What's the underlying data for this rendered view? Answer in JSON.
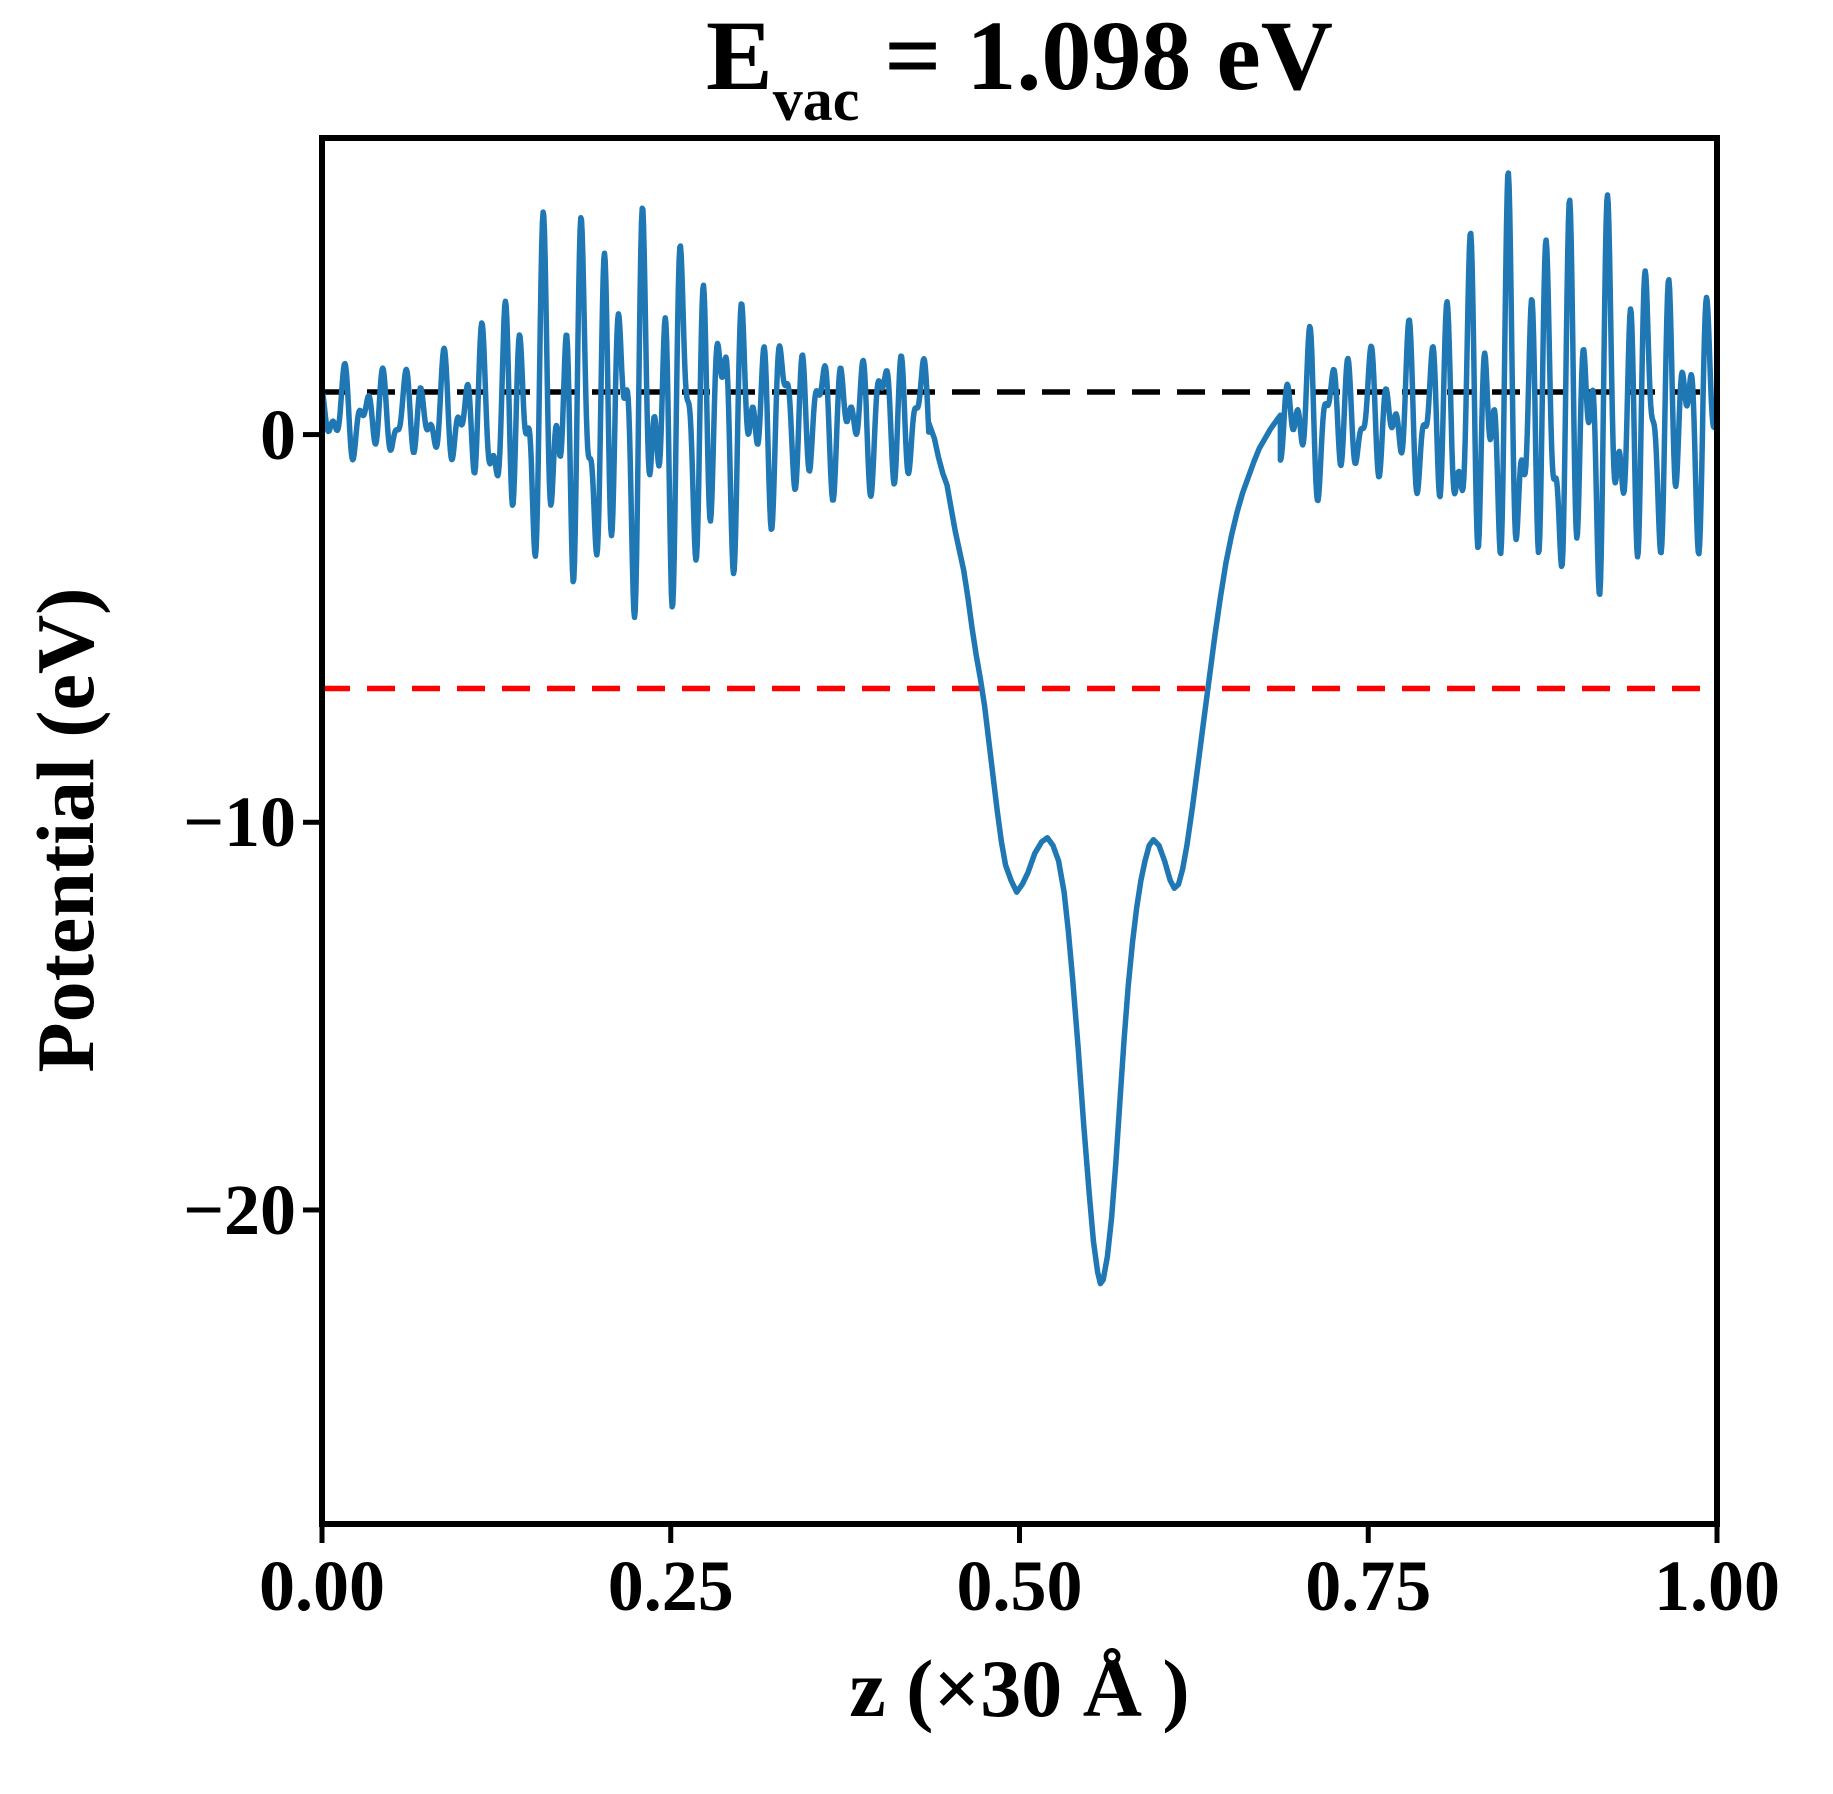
{
  "figure": {
    "title_base": "E",
    "title_sub": "vac",
    "title_rest": " = 1.098 eV",
    "xlabel": "z (×30 Å )",
    "ylabel": "Potential (eV)"
  },
  "colors": {
    "curve": "#1f77b4",
    "vacuum_line": "#000000",
    "red_line": "#ff0000",
    "axes": "#000000",
    "background": "#ffffff"
  },
  "chart_data": {
    "type": "line",
    "title": "E_vac = 1.098 eV",
    "xlabel": "z (×30 Å )",
    "ylabel": "Potential (eV)",
    "xlim": [
      0,
      1
    ],
    "ylim": [
      -28.1,
      7.65
    ],
    "grid": false,
    "legend": "none",
    "x_ticks": [
      "0.00",
      "0.25",
      "0.50",
      "0.75",
      "1.00"
    ],
    "x_tick_values": [
      0,
      0.25,
      0.5,
      0.75,
      1.0
    ],
    "y_ticks": [
      "0",
      "−10",
      "−20"
    ],
    "y_tick_values": [
      0,
      -10,
      -20
    ],
    "hlines": [
      {
        "name": "vacuum-level",
        "value_eV": 1.098,
        "color": "#000000",
        "style": "dashed"
      },
      {
        "name": "red-reference-level",
        "value_eV": -6.55,
        "color": "#ff0000",
        "style": "dashed"
      }
    ],
    "features": {
      "well_center_z": 0.558,
      "well_minimum_eV": -21.9,
      "shoulder_maxima_eV": -10.4,
      "shoulder_z": [
        0.52,
        0.596
      ],
      "oscillation_peak_eV": 5.9,
      "oscillation_min_eV": -4.0,
      "vacuum_level_eV": 1.098
    },
    "series": [
      {
        "name": "planar-averaged-potential",
        "color": "#1f77b4",
        "segments": [
          {
            "type": "osc",
            "z0": 0.0,
            "z1": 0.435,
            "baseline": 0.5,
            "envelope": [
              [
                0,
                1.0
              ],
              [
                0.03,
                1.1
              ],
              [
                0.06,
                1.1
              ],
              [
                0.09,
                1.3
              ],
              [
                0.12,
                2.2
              ],
              [
                0.15,
                3.8
              ],
              [
                0.18,
                4.5
              ],
              [
                0.21,
                4.3
              ],
              [
                0.24,
                4.7
              ],
              [
                0.27,
                4.0
              ],
              [
                0.3,
                3.0
              ],
              [
                0.33,
                2.2
              ],
              [
                0.36,
                1.7
              ],
              [
                0.39,
                1.6
              ],
              [
                0.41,
                2.0
              ],
              [
                0.425,
                1.9
              ],
              [
                0.435,
                1.2
              ]
            ],
            "components": [
              {
                "f": 70,
                "a": 0.62,
                "p": 0.9
              },
              {
                "f": 113,
                "a": 0.45,
                "p": 2.2
              },
              {
                "f": 41,
                "a": 0.28,
                "p": 4.2
              }
            ]
          },
          {
            "type": "points",
            "points": [
              [
                0.435,
                0.3
              ],
              [
                0.439,
                -0.1
              ],
              [
                0.442,
                -0.6
              ],
              [
                0.445,
                -1.0
              ],
              [
                0.448,
                -1.3
              ],
              [
                0.451,
                -1.9
              ],
              [
                0.454,
                -2.5
              ],
              [
                0.457,
                -3.0
              ],
              [
                0.46,
                -3.5
              ],
              [
                0.463,
                -4.2
              ],
              [
                0.466,
                -5.0
              ],
              [
                0.469,
                -5.7
              ],
              [
                0.472,
                -6.3
              ],
              [
                0.475,
                -7.0
              ],
              [
                0.478,
                -7.9
              ],
              [
                0.481,
                -8.8
              ],
              [
                0.484,
                -9.7
              ],
              [
                0.487,
                -10.5
              ],
              [
                0.49,
                -11.1
              ],
              [
                0.494,
                -11.5
              ],
              [
                0.498,
                -11.8
              ],
              [
                0.502,
                -11.6
              ],
              [
                0.506,
                -11.3
              ],
              [
                0.511,
                -10.8
              ],
              [
                0.516,
                -10.5
              ],
              [
                0.52,
                -10.4
              ],
              [
                0.524,
                -10.6
              ],
              [
                0.528,
                -11.0
              ],
              [
                0.532,
                -11.8
              ],
              [
                0.535,
                -12.8
              ],
              [
                0.538,
                -14.0
              ],
              [
                0.542,
                -15.8
              ],
              [
                0.546,
                -17.8
              ],
              [
                0.55,
                -19.6
              ],
              [
                0.553,
                -20.8
              ],
              [
                0.556,
                -21.6
              ],
              [
                0.558,
                -21.9
              ],
              [
                0.56,
                -21.8
              ],
              [
                0.563,
                -21.2
              ],
              [
                0.566,
                -20.2
              ],
              [
                0.569,
                -18.8
              ],
              [
                0.572,
                -17.2
              ],
              [
                0.575,
                -15.6
              ],
              [
                0.578,
                -14.2
              ],
              [
                0.581,
                -13.1
              ],
              [
                0.584,
                -12.2
              ],
              [
                0.587,
                -11.5
              ],
              [
                0.59,
                -11.0
              ],
              [
                0.593,
                -10.6
              ],
              [
                0.596,
                -10.45
              ],
              [
                0.6,
                -10.6
              ],
              [
                0.604,
                -11.0
              ],
              [
                0.608,
                -11.5
              ],
              [
                0.611,
                -11.7
              ],
              [
                0.614,
                -11.6
              ],
              [
                0.617,
                -11.2
              ],
              [
                0.62,
                -10.6
              ],
              [
                0.624,
                -9.6
              ],
              [
                0.628,
                -8.5
              ],
              [
                0.632,
                -7.4
              ],
              [
                0.636,
                -6.3
              ],
              [
                0.64,
                -5.2
              ],
              [
                0.644,
                -4.2
              ],
              [
                0.648,
                -3.3
              ],
              [
                0.652,
                -2.6
              ],
              [
                0.656,
                -2.0
              ],
              [
                0.66,
                -1.5
              ],
              [
                0.664,
                -1.1
              ],
              [
                0.668,
                -0.7
              ],
              [
                0.672,
                -0.35
              ],
              [
                0.676,
                -0.1
              ],
              [
                0.68,
                0.15
              ],
              [
                0.684,
                0.35
              ],
              [
                0.687,
                0.5
              ]
            ]
          },
          {
            "type": "osc",
            "z0": 0.687,
            "z1": 1.0,
            "baseline": 0.5,
            "envelope": [
              [
                0.687,
                1.0
              ],
              [
                0.7,
                2.3
              ],
              [
                0.712,
                1.9
              ],
              [
                0.73,
                1.7
              ],
              [
                0.75,
                1.5
              ],
              [
                0.77,
                1.7
              ],
              [
                0.79,
                2.2
              ],
              [
                0.81,
                3.2
              ],
              [
                0.83,
                4.2
              ],
              [
                0.85,
                4.7
              ],
              [
                0.87,
                4.3
              ],
              [
                0.89,
                4.8
              ],
              [
                0.91,
                4.6
              ],
              [
                0.93,
                4.3
              ],
              [
                0.95,
                3.8
              ],
              [
                0.97,
                3.2
              ],
              [
                0.985,
                3.0
              ],
              [
                1.0,
                2.4
              ]
            ],
            "components": [
              {
                "f": 70,
                "a": 0.62,
                "p": 4.4
              },
              {
                "f": 113,
                "a": 0.45,
                "p": 1.1
              },
              {
                "f": 41,
                "a": 0.28,
                "p": 2.6
              }
            ]
          }
        ]
      }
    ]
  }
}
